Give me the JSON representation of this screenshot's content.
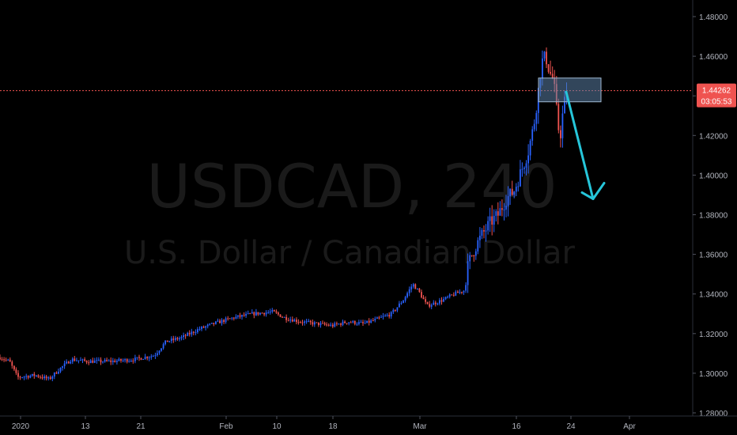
{
  "watermark": {
    "symbol": "USDCAD, 240",
    "description": "U.S. Dollar / Canadian Dollar"
  },
  "price_tag": {
    "value": "1.44262",
    "countdown": "03:05:53",
    "color": "#ef5350"
  },
  "colors": {
    "up": "#2962ff",
    "down": "#ef5350",
    "arrow": "#26c6da",
    "box_fill": "#5b7fa6",
    "box_border": "#9fb7d0"
  },
  "chart_data": {
    "type": "candlestick",
    "x_ticks": [
      "2020",
      "13",
      "21",
      "Feb",
      "10",
      "18",
      "Mar",
      "16",
      "24",
      "Apr"
    ],
    "y_ticks": [
      "1.48000",
      "1.46000",
      "1.44000",
      "1.42000",
      "1.40000",
      "1.38000",
      "1.36000",
      "1.34000",
      "1.32000",
      "1.30000",
      "1.28000"
    ],
    "ylim": [
      1.28,
      1.48
    ],
    "trajectory": [
      [
        0,
        1.308
      ],
      [
        12,
        1.306
      ],
      [
        22,
        1.298
      ],
      [
        45,
        1.299
      ],
      [
        62,
        1.297
      ],
      [
        75,
        1.302
      ],
      [
        90,
        1.307
      ],
      [
        110,
        1.306
      ],
      [
        140,
        1.306
      ],
      [
        170,
        1.307
      ],
      [
        195,
        1.309
      ],
      [
        210,
        1.316
      ],
      [
        230,
        1.318
      ],
      [
        250,
        1.322
      ],
      [
        270,
        1.325
      ],
      [
        295,
        1.328
      ],
      [
        320,
        1.33
      ],
      [
        345,
        1.331
      ],
      [
        360,
        1.328
      ],
      [
        380,
        1.326
      ],
      [
        400,
        1.325
      ],
      [
        420,
        1.324
      ],
      [
        440,
        1.326
      ],
      [
        460,
        1.325
      ],
      [
        475,
        1.327
      ],
      [
        495,
        1.33
      ],
      [
        510,
        1.337
      ],
      [
        522,
        1.345
      ],
      [
        530,
        1.341
      ],
      [
        540,
        1.334
      ],
      [
        560,
        1.337
      ],
      [
        575,
        1.34
      ],
      [
        588,
        1.342
      ],
      [
        592,
        1.355
      ],
      [
        600,
        1.363
      ],
      [
        610,
        1.37
      ],
      [
        620,
        1.376
      ],
      [
        630,
        1.38
      ],
      [
        640,
        1.388
      ],
      [
        650,
        1.392
      ],
      [
        660,
        1.403
      ],
      [
        668,
        1.412
      ],
      [
        675,
        1.425
      ],
      [
        680,
        1.44
      ],
      [
        685,
        1.457
      ],
      [
        690,
        1.46
      ],
      [
        695,
        1.452
      ],
      [
        700,
        1.448
      ],
      [
        705,
        1.428
      ],
      [
        708,
        1.418
      ],
      [
        712,
        1.432
      ],
      [
        716,
        1.442
      ],
      [
        718,
        1.443
      ]
    ],
    "current_price": 1.44262,
    "zone": {
      "x_start": 681,
      "x_end": 760,
      "y_top": 1.449,
      "y_bottom": 1.437
    },
    "arrow": {
      "from": [
        716,
        1.442
      ],
      "to": [
        750,
        1.388
      ]
    },
    "grid": false
  }
}
